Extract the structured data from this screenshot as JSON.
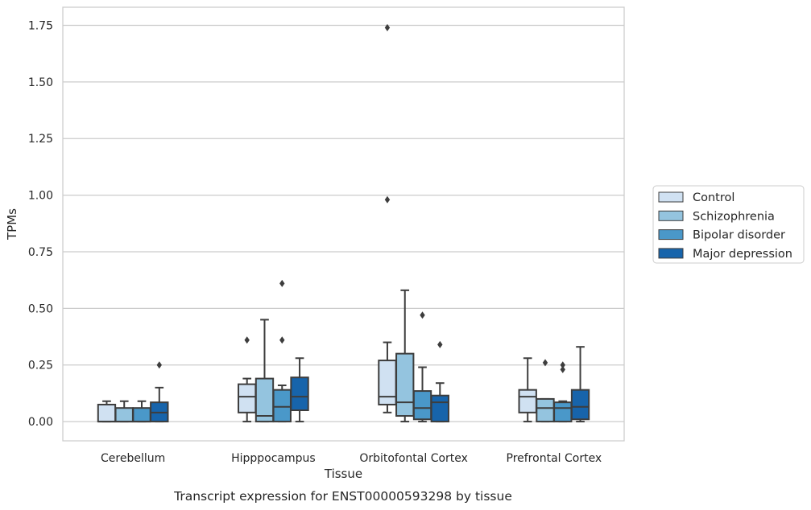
{
  "chart_data": {
    "type": "box",
    "caption": "Transcript expression for ENST00000593298 by tissue",
    "xlabel": "Tissue",
    "ylabel": "TPMs",
    "ylim": [
      -0.085,
      1.83
    ],
    "yticks": [
      0.0,
      0.25,
      0.5,
      0.75,
      1.0,
      1.25,
      1.5,
      1.75
    ],
    "ytick_labels": [
      "0.00",
      "0.25",
      "0.50",
      "0.75",
      "1.00",
      "1.25",
      "1.50",
      "1.75"
    ],
    "grid": "horizontal",
    "legend_position": "right",
    "categories": [
      "Cerebellum",
      "Hipppocampus",
      "Orbitofontal Cortex",
      "Prefrontal Cortex"
    ],
    "series": [
      {
        "name": "Control",
        "color": "#d0e1f2",
        "boxes": [
          {
            "whislo": 0.0,
            "q1": 0.0,
            "med": 0.0,
            "q3": 0.075,
            "whishi": 0.09,
            "fliers": []
          },
          {
            "whislo": 0.0,
            "q1": 0.04,
            "med": 0.11,
            "q3": 0.165,
            "whishi": 0.19,
            "fliers": [
              0.36
            ]
          },
          {
            "whislo": 0.04,
            "q1": 0.075,
            "med": 0.11,
            "q3": 0.27,
            "whishi": 0.35,
            "fliers": [
              0.98,
              1.74
            ]
          },
          {
            "whislo": 0.0,
            "q1": 0.04,
            "med": 0.11,
            "q3": 0.14,
            "whishi": 0.28,
            "fliers": []
          }
        ]
      },
      {
        "name": "Schizophrenia",
        "color": "#94c4df",
        "boxes": [
          {
            "whislo": 0.0,
            "q1": 0.0,
            "med": 0.0,
            "q3": 0.06,
            "whishi": 0.09,
            "fliers": []
          },
          {
            "whislo": 0.0,
            "q1": 0.0,
            "med": 0.025,
            "q3": 0.19,
            "whishi": 0.45,
            "fliers": []
          },
          {
            "whislo": 0.0,
            "q1": 0.025,
            "med": 0.085,
            "q3": 0.3,
            "whishi": 0.58,
            "fliers": []
          },
          {
            "whislo": 0.0,
            "q1": 0.0,
            "med": 0.06,
            "q3": 0.1,
            "whishi": 0.1,
            "fliers": [
              0.26
            ]
          }
        ]
      },
      {
        "name": "Bipolar disorder",
        "color": "#4a98c9",
        "boxes": [
          {
            "whislo": 0.0,
            "q1": 0.0,
            "med": 0.0,
            "q3": 0.06,
            "whishi": 0.09,
            "fliers": []
          },
          {
            "whislo": 0.0,
            "q1": 0.0,
            "med": 0.065,
            "q3": 0.14,
            "whishi": 0.16,
            "fliers": [
              0.36,
              0.61
            ]
          },
          {
            "whislo": 0.0,
            "q1": 0.01,
            "med": 0.06,
            "q3": 0.135,
            "whishi": 0.24,
            "fliers": [
              0.47
            ]
          },
          {
            "whislo": 0.0,
            "q1": 0.0,
            "med": 0.06,
            "q3": 0.085,
            "whishi": 0.09,
            "fliers": [
              0.23,
              0.25
            ]
          }
        ]
      },
      {
        "name": "Major depression",
        "color": "#1764ab",
        "boxes": [
          {
            "whislo": 0.0,
            "q1": 0.0,
            "med": 0.04,
            "q3": 0.085,
            "whishi": 0.15,
            "fliers": [
              0.25
            ]
          },
          {
            "whislo": 0.0,
            "q1": 0.05,
            "med": 0.11,
            "q3": 0.195,
            "whishi": 0.28,
            "fliers": []
          },
          {
            "whislo": 0.0,
            "q1": 0.0,
            "med": 0.085,
            "q3": 0.115,
            "whishi": 0.17,
            "fliers": [
              0.34
            ]
          },
          {
            "whislo": 0.0,
            "q1": 0.01,
            "med": 0.065,
            "q3": 0.14,
            "whishi": 0.33,
            "fliers": []
          }
        ]
      }
    ]
  }
}
